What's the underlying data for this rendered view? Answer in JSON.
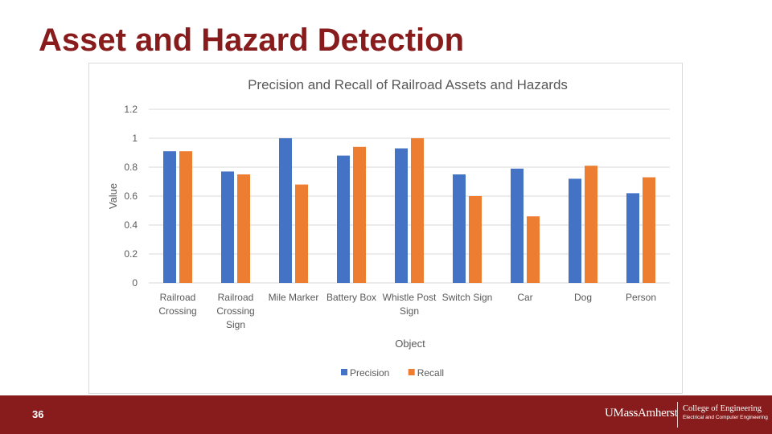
{
  "slide": {
    "title": "Asset and Hazard Detection",
    "page_number": "36"
  },
  "footer": {
    "brand": "UMassAmherst",
    "college": "College of Engineering",
    "department": "Electrical and Computer Engineering"
  },
  "colors": {
    "title": "#881c1c",
    "footer_bg": "#881c1c",
    "precision": "#4472c4",
    "recall": "#ed7d31",
    "gridline": "#d9d9d9",
    "axis_text": "#595959"
  },
  "chart_data": {
    "type": "bar",
    "title": "Precision and Recall of Railroad Assets and Hazards",
    "xlabel": "Object",
    "ylabel": "Value",
    "ylim": [
      0,
      1.2
    ],
    "yticks": [
      "0",
      "0.2",
      "0.4",
      "0.6",
      "0.8",
      "1",
      "1.2"
    ],
    "grid": true,
    "legend_position": "bottom",
    "categories": [
      [
        "Railroad",
        "Crossing"
      ],
      [
        "Railroad",
        "Crossing",
        "Sign"
      ],
      [
        "Mile Marker"
      ],
      [
        "Battery Box"
      ],
      [
        "Whistle Post",
        "Sign"
      ],
      [
        "Switch Sign"
      ],
      [
        "Car"
      ],
      [
        "Dog"
      ],
      [
        "Person"
      ]
    ],
    "series": [
      {
        "name": "Precision",
        "values": [
          0.91,
          0.77,
          1.0,
          0.88,
          0.93,
          0.75,
          0.79,
          0.72,
          0.62
        ]
      },
      {
        "name": "Recall",
        "values": [
          0.91,
          0.75,
          0.68,
          0.94,
          1.0,
          0.6,
          0.46,
          0.81,
          0.73
        ]
      }
    ]
  }
}
